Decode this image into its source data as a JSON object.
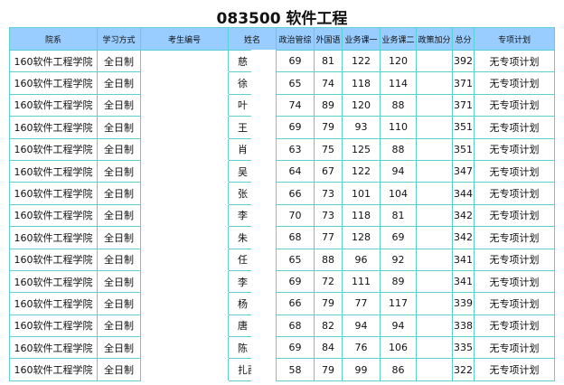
{
  "title": "083500  软件工程",
  "headers": [
    "院系",
    "学习方式",
    "考生编号",
    "姓名",
    "政治管综",
    "外国语",
    "业务课一",
    "业务课二",
    "政策加分",
    "总分",
    "专项计划"
  ],
  "rows": [
    [
      "160软件工程学院",
      "全日制",
      "",
      "慈",
      "69",
      "81",
      "122",
      "120",
      "",
      "392",
      "无专项计划"
    ],
    [
      "160软件工程学院",
      "全日制",
      "",
      "徐",
      "65",
      "74",
      "118",
      "114",
      "",
      "371",
      "无专项计划"
    ],
    [
      "160软件工程学院",
      "全日制",
      "",
      "叶",
      "74",
      "89",
      "120",
      "88",
      "",
      "371",
      "无专项计划"
    ],
    [
      "160软件工程学院",
      "全日制",
      "",
      "王",
      "69",
      "79",
      "93",
      "110",
      "",
      "351",
      "无专项计划"
    ],
    [
      "160软件工程学院",
      "全日制",
      "",
      "肖",
      "63",
      "75",
      "125",
      "88",
      "",
      "351",
      "无专项计划"
    ],
    [
      "160软件工程学院",
      "全日制",
      "",
      "吴",
      "64",
      "67",
      "122",
      "94",
      "",
      "347",
      "无专项计划"
    ],
    [
      "160软件工程学院",
      "全日制",
      "",
      "张",
      "66",
      "73",
      "101",
      "104",
      "",
      "344",
      "无专项计划"
    ],
    [
      "160软件工程学院",
      "全日制",
      "",
      "李",
      "70",
      "73",
      "118",
      "81",
      "",
      "342",
      "无专项计划"
    ],
    [
      "160软件工程学院",
      "全日制",
      "",
      "朱",
      "68",
      "77",
      "128",
      "69",
      "",
      "342",
      "无专项计划"
    ],
    [
      "160软件工程学院",
      "全日制",
      "",
      "任",
      "65",
      "88",
      "96",
      "92",
      "",
      "341",
      "无专项计划"
    ],
    [
      "160软件工程学院",
      "全日制",
      "",
      "李",
      "69",
      "72",
      "111",
      "89",
      "",
      "341",
      "无专项计划"
    ],
    [
      "160软件工程学院",
      "全日制",
      "",
      "杨",
      "66",
      "79",
      "77",
      "117",
      "",
      "339",
      "无专项计划"
    ],
    [
      "160软件工程学院",
      "全日制",
      "",
      "唐",
      "68",
      "82",
      "94",
      "94",
      "",
      "338",
      "无专项计划"
    ],
    [
      "160软件工程学院",
      "全日制",
      "",
      "陈",
      "69",
      "84",
      "76",
      "106",
      "",
      "335",
      "无专项计划"
    ],
    [
      "160软件工程学院",
      "全日制",
      "",
      "扎西",
      "58",
      "79",
      "99",
      "86",
      "",
      "322",
      "无专项计划"
    ]
  ]
}
